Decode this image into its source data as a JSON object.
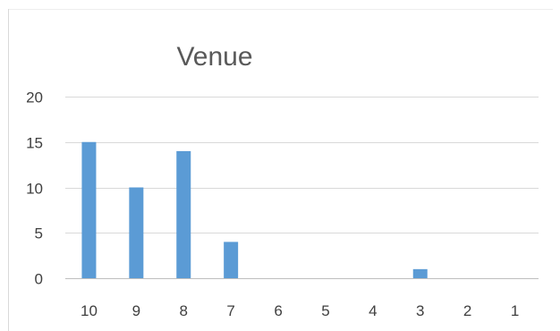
{
  "chart_data": {
    "type": "bar",
    "title": "Venue",
    "xlabel": "",
    "ylabel": "",
    "categories": [
      "10",
      "9",
      "8",
      "7",
      "6",
      "5",
      "4",
      "3",
      "2",
      "1"
    ],
    "values": [
      15,
      10,
      14,
      4,
      0,
      0,
      0,
      1,
      0,
      0
    ],
    "ylim": [
      0,
      20
    ],
    "yticks": [
      "0",
      "5",
      "10",
      "15",
      "20"
    ],
    "grid": true,
    "legend": "none",
    "colors": {
      "bar": "#5b9bd5",
      "grid": "#d9d9d9",
      "axis": "#bfbfbf",
      "frame": "#d9d9d9",
      "text": "#404040",
      "title": "#595959"
    }
  }
}
